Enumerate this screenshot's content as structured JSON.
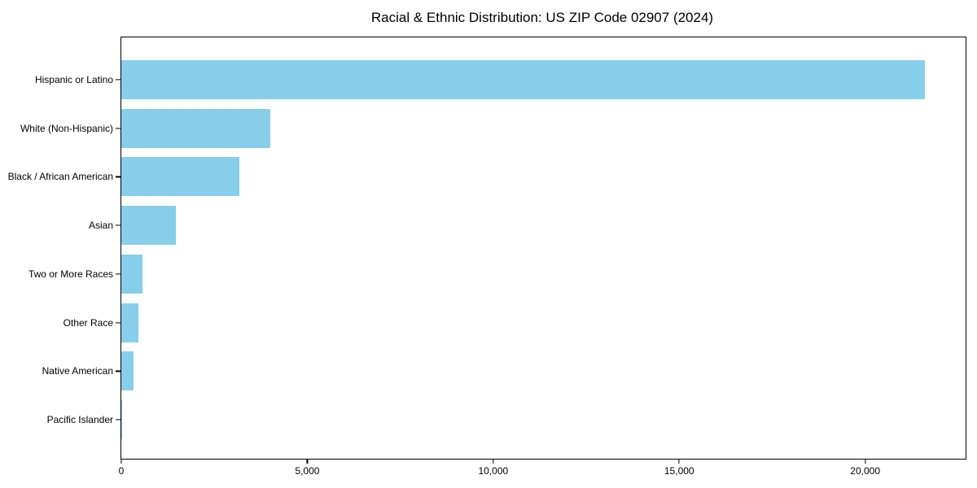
{
  "chart_data": {
    "type": "bar",
    "orientation": "horizontal",
    "title": "Racial & Ethnic Distribution: US ZIP Code 02907 (2024)",
    "xlabel": "",
    "ylabel": "",
    "categories": [
      "Hispanic or Latino",
      "White (Non-Hispanic)",
      "Black / African American",
      "Asian",
      "Two or More Races",
      "Other Race",
      "Native American",
      "Pacific Islander"
    ],
    "values": [
      21600,
      4000,
      3180,
      1460,
      570,
      460,
      330,
      20
    ],
    "xlim": [
      0,
      22700
    ],
    "x_ticks": [
      0,
      5000,
      10000,
      15000,
      20000
    ],
    "x_tick_labels": [
      "0",
      "5,000",
      "10,000",
      "15,000",
      "20,000"
    ],
    "bar_color": "#87CEEB",
    "axis_color": "#000000",
    "background_color": "#ffffff",
    "grid": false,
    "legend": null
  }
}
